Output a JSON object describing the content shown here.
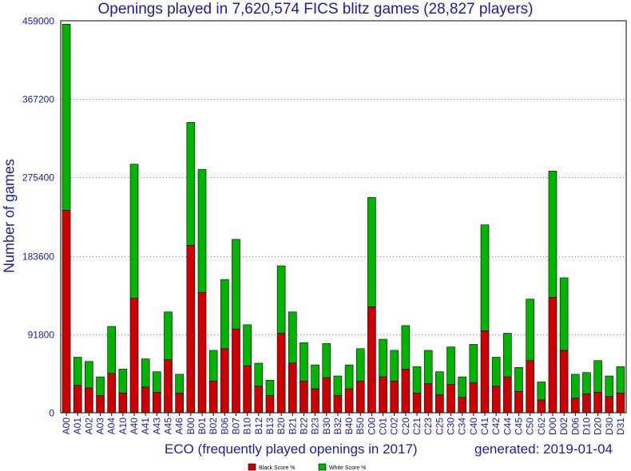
{
  "chart_data": {
    "type": "bar",
    "stacked": true,
    "title": "Openings played in 7,620,574 FICS blitz games (28,827 players)",
    "xlabel": "ECO (frequently played openings in 2017)",
    "ylabel": "Number of games",
    "footer": "generated: 2019-01-04",
    "ylim": [
      0,
      459000
    ],
    "yticks": [
      "0",
      "91800",
      "183600",
      "275400",
      "367200",
      "459000"
    ],
    "grid": "horizontal",
    "legend_position": "bottom-center",
    "categories": [
      "A00",
      "A01",
      "A02",
      "A03",
      "A04",
      "A10",
      "A40",
      "A41",
      "A43",
      "A45",
      "A46",
      "B00",
      "B01",
      "B02",
      "B06",
      "B07",
      "B10",
      "B12",
      "B13",
      "B20",
      "B21",
      "B22",
      "B23",
      "B30",
      "B32",
      "B40",
      "B50",
      "C00",
      "C01",
      "C02",
      "C20",
      "C21",
      "C23",
      "C25",
      "C30",
      "C34",
      "C40",
      "C41",
      "C42",
      "C44",
      "C45",
      "C50",
      "C62",
      "D00",
      "D02",
      "D06",
      "D10",
      "D20",
      "D30",
      "D31"
    ],
    "series": [
      {
        "name": "Black Score %",
        "color": "#cc0000",
        "values": [
          237000,
          32000,
          29000,
          20000,
          46000,
          23000,
          134000,
          30000,
          24000,
          62000,
          23000,
          196000,
          141000,
          37000,
          75000,
          98000,
          55000,
          31000,
          20000,
          93000,
          58000,
          37000,
          28000,
          41000,
          20000,
          28000,
          37000,
          124000,
          42000,
          37000,
          51000,
          23000,
          34000,
          21000,
          33000,
          18000,
          35000,
          96000,
          31000,
          42000,
          25000,
          61000,
          15000,
          135000,
          73000,
          17000,
          22000,
          24000,
          19000,
          23000
        ]
      },
      {
        "name": "White Score %",
        "color": "#00b400",
        "values": [
          218000,
          33000,
          31000,
          22000,
          55000,
          28000,
          157000,
          33000,
          24000,
          56000,
          22000,
          144000,
          144000,
          36000,
          81000,
          105000,
          48000,
          27000,
          18000,
          79000,
          60000,
          45000,
          28000,
          40000,
          23000,
          28000,
          38000,
          128000,
          44000,
          36000,
          51000,
          31000,
          39000,
          27000,
          44000,
          24000,
          45000,
          124000,
          34000,
          51000,
          28000,
          72000,
          21000,
          148000,
          85000,
          28000,
          25000,
          37000,
          24000,
          31000
        ]
      }
    ]
  }
}
